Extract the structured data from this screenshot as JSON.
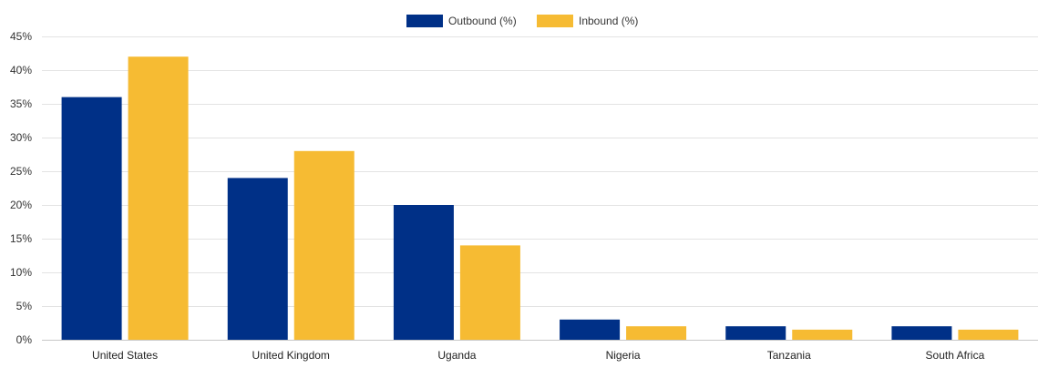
{
  "chart_data": {
    "type": "bar",
    "title": "",
    "xlabel": "",
    "ylabel": "",
    "categories": [
      "United States",
      "United Kingdom",
      "Uganda",
      "Nigeria",
      "Tanzania",
      "South Africa"
    ],
    "series": [
      {
        "name": "Outbound (%)",
        "color": "#003087",
        "values": [
          36,
          24,
          20,
          3,
          2,
          2
        ]
      },
      {
        "name": "Inbound (%)",
        "color": "#F6BB33",
        "values": [
          42,
          28,
          14,
          2,
          1.5,
          1.5
        ]
      }
    ],
    "ylim": [
      0,
      45
    ],
    "yticks": [
      0,
      5,
      10,
      15,
      20,
      25,
      30,
      35,
      40,
      45
    ],
    "ytick_labels": [
      "0%",
      "5%",
      "10%",
      "15%",
      "20%",
      "25%",
      "30%",
      "35%",
      "40%",
      "45%"
    ],
    "legend_position": "top-center",
    "grid": true
  }
}
